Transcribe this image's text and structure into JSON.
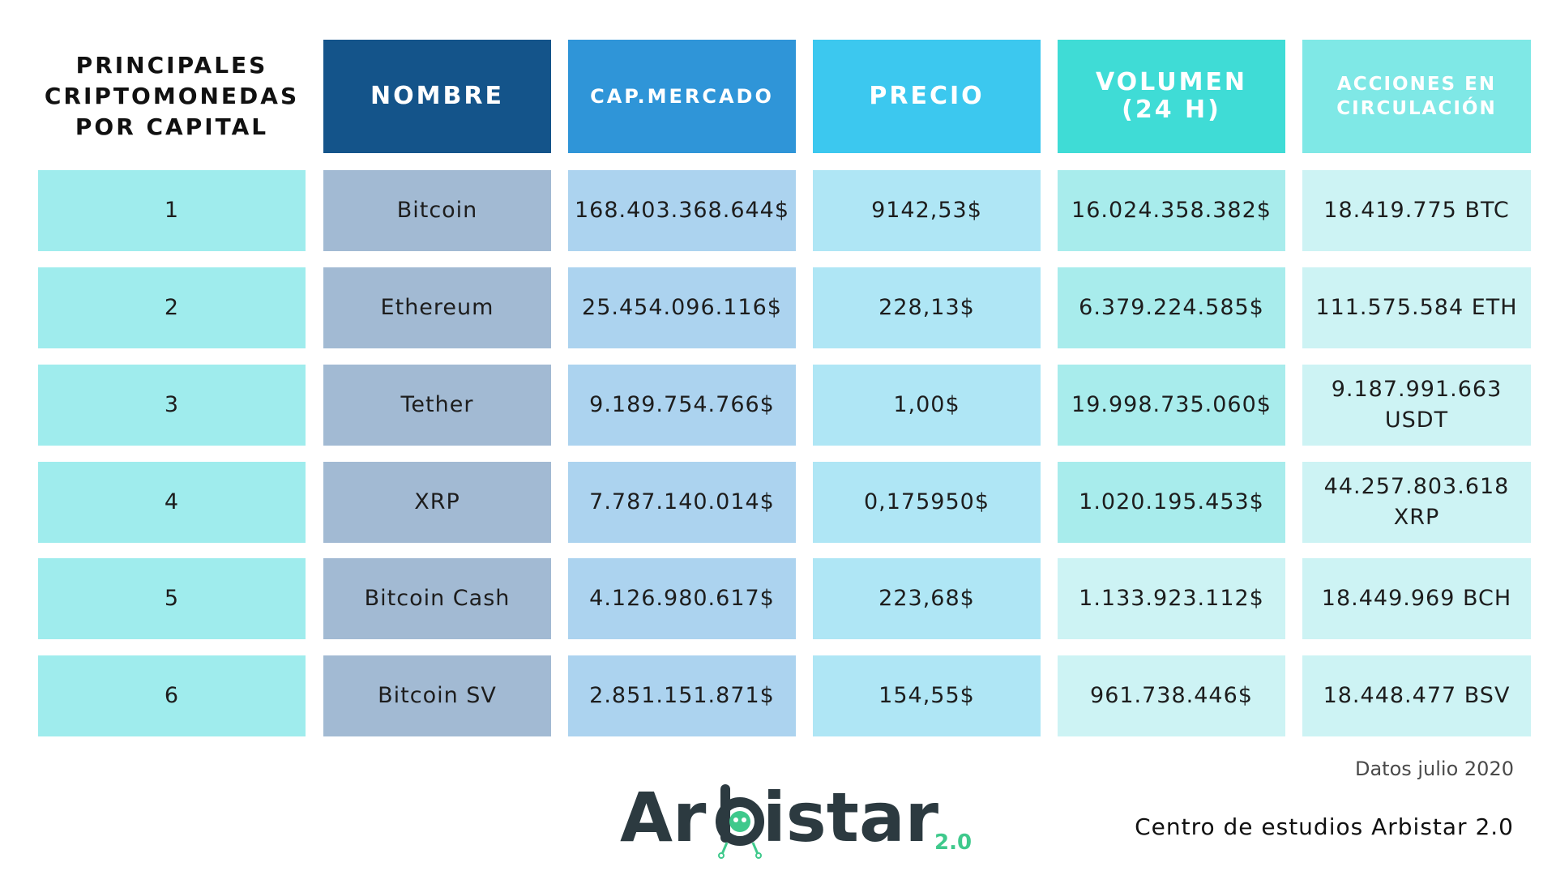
{
  "title": {
    "lines": [
      "PRINCIPALES",
      "CRIPTOMONEDAS",
      "POR CAPITAL"
    ]
  },
  "headers": {
    "nombre": "NOMBRE",
    "cap_mercado": "CAP.MERCADO",
    "precio": "PRECIO",
    "volumen": [
      "VOLUMEN",
      "(24 H)"
    ],
    "acciones": [
      "ACCIONES EN",
      "CIRCULACIÓN"
    ]
  },
  "colors": {
    "header_nombre": "#14548a",
    "header_cap": "#2f95d8",
    "header_precio": "#3cc8ef",
    "header_volumen": "#3fdcd6",
    "header_acciones": "#7fe8e6",
    "col_rank": "#9feced",
    "col_nombre": "#a2bad3",
    "col_cap": "#acd3ef",
    "col_precio": "#afe6f5",
    "col_volumen": "#a8ecec",
    "col_volumen_light": "#cdf3f4",
    "col_acciones": "#cdf3f4",
    "logo_dark": "#2c3a40",
    "logo_accent": "#3fc98c"
  },
  "rows": [
    {
      "rank": "1",
      "nombre": "Bitcoin",
      "cap": "168.403.368.644$",
      "precio": "9142,53$",
      "volumen": "16.024.358.382$",
      "acciones": [
        "18.419.775 BTC"
      ]
    },
    {
      "rank": "2",
      "nombre": "Ethereum",
      "cap": "25.454.096.116$",
      "precio": "228,13$",
      "volumen": "6.379.224.585$",
      "acciones": [
        "111.575.584 ETH"
      ]
    },
    {
      "rank": "3",
      "nombre": "Tether",
      "cap": "9.189.754.766$",
      "precio": "1,00$",
      "volumen": "19.998.735.060$",
      "acciones": [
        "9.187.991.663",
        "USDT"
      ]
    },
    {
      "rank": "4",
      "nombre": "XRP",
      "cap": "7.787.140.014$",
      "precio": "0,175950$",
      "volumen": "1.020.195.453$",
      "acciones": [
        "44.257.803.618",
        "XRP"
      ]
    },
    {
      "rank": "5",
      "nombre": "Bitcoin Cash",
      "cap": "4.126.980.617$",
      "precio": "223,68$",
      "volumen": "1.133.923.112$",
      "acciones": [
        "18.449.969 BCH"
      ]
    },
    {
      "rank": "6",
      "nombre": "Bitcoin SV",
      "cap": "2.851.151.871$",
      "precio": "154,55$",
      "volumen": "961.738.446$",
      "acciones": [
        "18.448.477 BSV"
      ]
    }
  ],
  "footer": {
    "date_note": "Datos julio 2020",
    "center": "Centro de estudios Arbistar 2.0"
  },
  "logo": {
    "text_part1": "Ar",
    "text_part2": "istar",
    "suffix": "2.0"
  }
}
